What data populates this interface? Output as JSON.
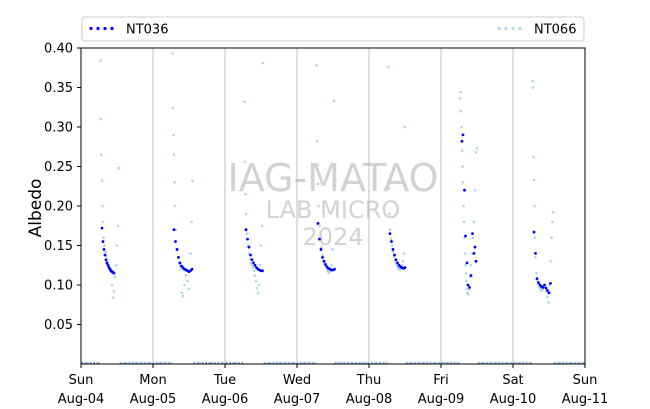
{
  "chart_data": {
    "type": "scatter",
    "title": "",
    "xlabel": "",
    "ylabel": "Albedo",
    "ylim": [
      0.0,
      0.4
    ],
    "yticks": [
      0.05,
      0.1,
      0.15,
      0.2,
      0.25,
      0.3,
      0.35,
      0.4
    ],
    "ytick_labels": [
      "0.05",
      "0.10",
      "0.15",
      "0.20",
      "0.25",
      "0.30",
      "0.35",
      "0.40"
    ],
    "xlim": [
      "2024-08-04",
      "2024-08-11"
    ],
    "xticks": [
      {
        "day": "Sun",
        "date": "Aug-04"
      },
      {
        "day": "Mon",
        "date": "Aug-05"
      },
      {
        "day": "Tue",
        "date": "Aug-06"
      },
      {
        "day": "Wed",
        "date": "Aug-07"
      },
      {
        "day": "Thu",
        "date": "Aug-08"
      },
      {
        "day": "Fri",
        "date": "Aug-09"
      },
      {
        "day": "Sat",
        "date": "Aug-10"
      },
      {
        "day": "Sun",
        "date": "Aug-11"
      }
    ],
    "vertical_gridlines": "at each midnight",
    "legend_position": "top, above plot",
    "watermark": [
      "IAG-MATAO",
      "LAB MICRO",
      "2024"
    ],
    "series": [
      {
        "name": "NT036",
        "color": "#0000ff",
        "points": [
          [
            "2024-08-04 07:00",
            0.172
          ],
          [
            "2024-08-04 07:20",
            0.155
          ],
          [
            "2024-08-04 07:40",
            0.145
          ],
          [
            "2024-08-04 08:00",
            0.138
          ],
          [
            "2024-08-04 08:20",
            0.132
          ],
          [
            "2024-08-04 08:40",
            0.128
          ],
          [
            "2024-08-04 09:00",
            0.125
          ],
          [
            "2024-08-04 09:20",
            0.122
          ],
          [
            "2024-08-04 09:40",
            0.12
          ],
          [
            "2024-08-04 10:00",
            0.118
          ],
          [
            "2024-08-04 10:20",
            0.117
          ],
          [
            "2024-08-04 10:40",
            0.116
          ],
          [
            "2024-08-04 11:00",
            0.115
          ],
          [
            "2024-08-05 07:00",
            0.17
          ],
          [
            "2024-08-05 07:30",
            0.155
          ],
          [
            "2024-08-05 08:00",
            0.145
          ],
          [
            "2024-08-05 08:30",
            0.135
          ],
          [
            "2024-08-05 09:00",
            0.128
          ],
          [
            "2024-08-05 09:30",
            0.124
          ],
          [
            "2024-08-05 10:00",
            0.122
          ],
          [
            "2024-08-05 10:30",
            0.12
          ],
          [
            "2024-08-05 11:00",
            0.119
          ],
          [
            "2024-08-05 11:30",
            0.118
          ],
          [
            "2024-08-05 12:00",
            0.117
          ],
          [
            "2024-08-05 12:30",
            0.118
          ],
          [
            "2024-08-05 13:00",
            0.12
          ],
          [
            "2024-08-06 07:00",
            0.17
          ],
          [
            "2024-08-06 07:30",
            0.158
          ],
          [
            "2024-08-06 08:00",
            0.148
          ],
          [
            "2024-08-06 08:30",
            0.138
          ],
          [
            "2024-08-06 09:00",
            0.132
          ],
          [
            "2024-08-06 09:30",
            0.128
          ],
          [
            "2024-08-06 10:00",
            0.125
          ],
          [
            "2024-08-06 10:30",
            0.122
          ],
          [
            "2024-08-06 11:00",
            0.12
          ],
          [
            "2024-08-06 11:30",
            0.119
          ],
          [
            "2024-08-06 12:00",
            0.118
          ],
          [
            "2024-08-06 12:30",
            0.118
          ],
          [
            "2024-08-07 07:00",
            0.178
          ],
          [
            "2024-08-07 07:30",
            0.158
          ],
          [
            "2024-08-07 08:00",
            0.145
          ],
          [
            "2024-08-07 08:30",
            0.135
          ],
          [
            "2024-08-07 09:00",
            0.13
          ],
          [
            "2024-08-07 09:30",
            0.126
          ],
          [
            "2024-08-07 10:00",
            0.123
          ],
          [
            "2024-08-07 10:30",
            0.121
          ],
          [
            "2024-08-07 11:00",
            0.12
          ],
          [
            "2024-08-07 11:30",
            0.119
          ],
          [
            "2024-08-07 12:00",
            0.119
          ],
          [
            "2024-08-07 12:30",
            0.12
          ],
          [
            "2024-08-08 07:00",
            0.165
          ],
          [
            "2024-08-08 07:30",
            0.155
          ],
          [
            "2024-08-08 08:00",
            0.145
          ],
          [
            "2024-08-08 08:30",
            0.138
          ],
          [
            "2024-08-08 09:00",
            0.132
          ],
          [
            "2024-08-08 09:30",
            0.128
          ],
          [
            "2024-08-08 10:00",
            0.125
          ],
          [
            "2024-08-08 10:30",
            0.123
          ],
          [
            "2024-08-08 11:00",
            0.122
          ],
          [
            "2024-08-08 11:30",
            0.121
          ],
          [
            "2024-08-08 12:00",
            0.122
          ],
          [
            "2024-08-09 07:00",
            0.282
          ],
          [
            "2024-08-09 07:20",
            0.29
          ],
          [
            "2024-08-09 07:50",
            0.22
          ],
          [
            "2024-08-09 08:10",
            0.162
          ],
          [
            "2024-08-09 08:40",
            0.128
          ],
          [
            "2024-08-09 09:00",
            0.1
          ],
          [
            "2024-08-09 09:30",
            0.097
          ],
          [
            "2024-08-09 10:00",
            0.112
          ],
          [
            "2024-08-09 10:30",
            0.165
          ],
          [
            "2024-08-09 11:00",
            0.14
          ],
          [
            "2024-08-09 11:20",
            0.148
          ],
          [
            "2024-08-09 11:40",
            0.13
          ],
          [
            "2024-08-10 07:00",
            0.167
          ],
          [
            "2024-08-10 07:30",
            0.14
          ],
          [
            "2024-08-10 08:00",
            0.108
          ],
          [
            "2024-08-10 08:30",
            0.103
          ],
          [
            "2024-08-10 09:00",
            0.1
          ],
          [
            "2024-08-10 09:30",
            0.098
          ],
          [
            "2024-08-10 10:00",
            0.097
          ],
          [
            "2024-08-10 10:30",
            0.1
          ],
          [
            "2024-08-10 11:00",
            0.096
          ],
          [
            "2024-08-10 11:30",
            0.093
          ],
          [
            "2024-08-10 12:00",
            0.09
          ],
          [
            "2024-08-10 12:30",
            0.102
          ]
        ]
      },
      {
        "name": "NT066",
        "color": "#add8e6",
        "points": [
          [
            "2024-08-04 06:30",
            0.384
          ],
          [
            "2024-08-04 06:40",
            0.31
          ],
          [
            "2024-08-04 06:50",
            0.265
          ],
          [
            "2024-08-04 07:00",
            0.232
          ],
          [
            "2024-08-04 07:10",
            0.2
          ],
          [
            "2024-08-04 07:20",
            0.18
          ],
          [
            "2024-08-04 07:30",
            0.16
          ],
          [
            "2024-08-04 07:50",
            0.15
          ],
          [
            "2024-08-04 08:10",
            0.142
          ],
          [
            "2024-08-04 08:30",
            0.136
          ],
          [
            "2024-08-04 08:50",
            0.13
          ],
          [
            "2024-08-04 09:10",
            0.126
          ],
          [
            "2024-08-04 09:30",
            0.123
          ],
          [
            "2024-08-04 09:50",
            0.12
          ],
          [
            "2024-08-04 10:10",
            0.116
          ],
          [
            "2024-08-04 10:20",
            0.1
          ],
          [
            "2024-08-04 10:40",
            0.084
          ],
          [
            "2024-08-04 11:00",
            0.092
          ],
          [
            "2024-08-04 11:20",
            0.11
          ],
          [
            "2024-08-04 11:40",
            0.125
          ],
          [
            "2024-08-04 12:00",
            0.15
          ],
          [
            "2024-08-04 12:20",
            0.175
          ],
          [
            "2024-08-04 12:40",
            0.248
          ],
          [
            "2024-08-05 06:30",
            0.393
          ],
          [
            "2024-08-05 06:40",
            0.324
          ],
          [
            "2024-08-05 06:50",
            0.29
          ],
          [
            "2024-08-05 07:00",
            0.265
          ],
          [
            "2024-08-05 07:10",
            0.23
          ],
          [
            "2024-08-05 07:20",
            0.2
          ],
          [
            "2024-08-05 07:40",
            0.17
          ],
          [
            "2024-08-05 08:00",
            0.145
          ],
          [
            "2024-08-05 08:20",
            0.135
          ],
          [
            "2024-08-05 08:40",
            0.128
          ],
          [
            "2024-08-05 09:00",
            0.124
          ],
          [
            "2024-08-05 09:20",
            0.12
          ],
          [
            "2024-08-05 09:40",
            0.09
          ],
          [
            "2024-08-05 10:00",
            0.086
          ],
          [
            "2024-08-05 10:30",
            0.1
          ],
          [
            "2024-08-05 11:00",
            0.112
          ],
          [
            "2024-08-05 11:30",
            0.105
          ],
          [
            "2024-08-05 12:00",
            0.095
          ],
          [
            "2024-08-05 12:30",
            0.14
          ],
          [
            "2024-08-05 12:50",
            0.18
          ],
          [
            "2024-08-05 13:10",
            0.232
          ],
          [
            "2024-08-06 06:30",
            0.332
          ],
          [
            "2024-08-06 06:40",
            0.256
          ],
          [
            "2024-08-06 06:50",
            0.215
          ],
          [
            "2024-08-06 07:00",
            0.19
          ],
          [
            "2024-08-06 07:20",
            0.165
          ],
          [
            "2024-08-06 07:40",
            0.15
          ],
          [
            "2024-08-06 08:00",
            0.14
          ],
          [
            "2024-08-06 08:20",
            0.133
          ],
          [
            "2024-08-06 08:40",
            0.128
          ],
          [
            "2024-08-06 09:00",
            0.125
          ],
          [
            "2024-08-06 09:20",
            0.122
          ],
          [
            "2024-08-06 09:40",
            0.118
          ],
          [
            "2024-08-06 10:00",
            0.112
          ],
          [
            "2024-08-06 10:20",
            0.105
          ],
          [
            "2024-08-06 10:40",
            0.096
          ],
          [
            "2024-08-06 11:00",
            0.09
          ],
          [
            "2024-08-06 11:20",
            0.1
          ],
          [
            "2024-08-06 11:40",
            0.125
          ],
          [
            "2024-08-06 12:00",
            0.15
          ],
          [
            "2024-08-06 12:20",
            0.175
          ],
          [
            "2024-08-06 12:40",
            0.381
          ],
          [
            "2024-08-07 06:30",
            0.378
          ],
          [
            "2024-08-07 06:40",
            0.282
          ],
          [
            "2024-08-07 06:50",
            0.252
          ],
          [
            "2024-08-07 07:00",
            0.228
          ],
          [
            "2024-08-07 07:10",
            0.2
          ],
          [
            "2024-08-07 07:30",
            0.175
          ],
          [
            "2024-08-07 07:50",
            0.16
          ],
          [
            "2024-08-07 08:10",
            0.148
          ],
          [
            "2024-08-07 08:30",
            0.138
          ],
          [
            "2024-08-07 08:50",
            0.131
          ],
          [
            "2024-08-07 09:10",
            0.127
          ],
          [
            "2024-08-07 09:30",
            0.124
          ],
          [
            "2024-08-07 09:50",
            0.122
          ],
          [
            "2024-08-07 10:10",
            0.118
          ],
          [
            "2024-08-07 10:30",
            0.115
          ],
          [
            "2024-08-07 10:50",
            0.117
          ],
          [
            "2024-08-07 11:10",
            0.12
          ],
          [
            "2024-08-07 11:30",
            0.125
          ],
          [
            "2024-08-07 11:50",
            0.145
          ],
          [
            "2024-08-07 12:20",
            0.333
          ],
          [
            "2024-08-08 06:30",
            0.376
          ],
          [
            "2024-08-08 06:40",
            0.222
          ],
          [
            "2024-08-08 06:50",
            0.19
          ],
          [
            "2024-08-08 07:00",
            0.17
          ],
          [
            "2024-08-08 07:20",
            0.158
          ],
          [
            "2024-08-08 07:40",
            0.15
          ],
          [
            "2024-08-08 08:00",
            0.142
          ],
          [
            "2024-08-08 08:20",
            0.136
          ],
          [
            "2024-08-08 08:40",
            0.131
          ],
          [
            "2024-08-08 09:00",
            0.127
          ],
          [
            "2024-08-08 09:20",
            0.124
          ],
          [
            "2024-08-08 09:40",
            0.122
          ],
          [
            "2024-08-08 10:00",
            0.12
          ],
          [
            "2024-08-08 10:20",
            0.119
          ],
          [
            "2024-08-08 10:40",
            0.121
          ],
          [
            "2024-08-08 11:00",
            0.125
          ],
          [
            "2024-08-08 11:20",
            0.13
          ],
          [
            "2024-08-08 11:40",
            0.14
          ],
          [
            "2024-08-08 12:00",
            0.3
          ],
          [
            "2024-08-09 06:20",
            0.336
          ],
          [
            "2024-08-09 06:30",
            0.344
          ],
          [
            "2024-08-09 06:40",
            0.32
          ],
          [
            "2024-08-09 06:50",
            0.3
          ],
          [
            "2024-08-09 07:00",
            0.27
          ],
          [
            "2024-08-09 07:10",
            0.25
          ],
          [
            "2024-08-09 07:20",
            0.23
          ],
          [
            "2024-08-09 07:30",
            0.2
          ],
          [
            "2024-08-09 07:40",
            0.18
          ],
          [
            "2024-08-09 07:50",
            0.16
          ],
          [
            "2024-08-09 08:00",
            0.14
          ],
          [
            "2024-08-09 08:10",
            0.125
          ],
          [
            "2024-08-09 08:20",
            0.115
          ],
          [
            "2024-08-09 08:30",
            0.105
          ],
          [
            "2024-08-09 08:40",
            0.095
          ],
          [
            "2024-08-09 08:50",
            0.09
          ],
          [
            "2024-08-09 09:00",
            0.088
          ],
          [
            "2024-08-09 09:20",
            0.094
          ],
          [
            "2024-08-09 09:40",
            0.11
          ],
          [
            "2024-08-09 10:00",
            0.125
          ],
          [
            "2024-08-09 10:20",
            0.14
          ],
          [
            "2024-08-09 10:40",
            0.16
          ],
          [
            "2024-08-09 11:00",
            0.18
          ],
          [
            "2024-08-09 11:20",
            0.22
          ],
          [
            "2024-08-09 11:40",
            0.268
          ],
          [
            "2024-08-09 12:00",
            0.273
          ],
          [
            "2024-08-10 06:30",
            0.358
          ],
          [
            "2024-08-10 06:40",
            0.35
          ],
          [
            "2024-08-10 06:50",
            0.262
          ],
          [
            "2024-08-10 07:00",
            0.233
          ],
          [
            "2024-08-10 07:10",
            0.2
          ],
          [
            "2024-08-10 07:20",
            0.16
          ],
          [
            "2024-08-10 07:30",
            0.135
          ],
          [
            "2024-08-10 07:50",
            0.115
          ],
          [
            "2024-08-10 08:10",
            0.105
          ],
          [
            "2024-08-10 08:30",
            0.1
          ],
          [
            "2024-08-10 08:50",
            0.097
          ],
          [
            "2024-08-10 09:10",
            0.095
          ],
          [
            "2024-08-10 09:30",
            0.093
          ],
          [
            "2024-08-10 09:50",
            0.095
          ],
          [
            "2024-08-10 10:10",
            0.098
          ],
          [
            "2024-08-10 10:30",
            0.1
          ],
          [
            "2024-08-10 10:50",
            0.097
          ],
          [
            "2024-08-10 11:10",
            0.092
          ],
          [
            "2024-08-10 11:30",
            0.085
          ],
          [
            "2024-08-10 11:50",
            0.078
          ],
          [
            "2024-08-10 12:10",
            0.1
          ],
          [
            "2024-08-10 12:30",
            0.13
          ],
          [
            "2024-08-10 12:50",
            0.16
          ],
          [
            "2024-08-10 13:10",
            0.18
          ],
          [
            "2024-08-10 13:20",
            0.192
          ]
        ],
        "night_points": [
          [
            "2024-08-04 00:00",
            0.0
          ],
          [
            "2024-08-11 00:00",
            0.0
          ]
        ]
      }
    ]
  }
}
